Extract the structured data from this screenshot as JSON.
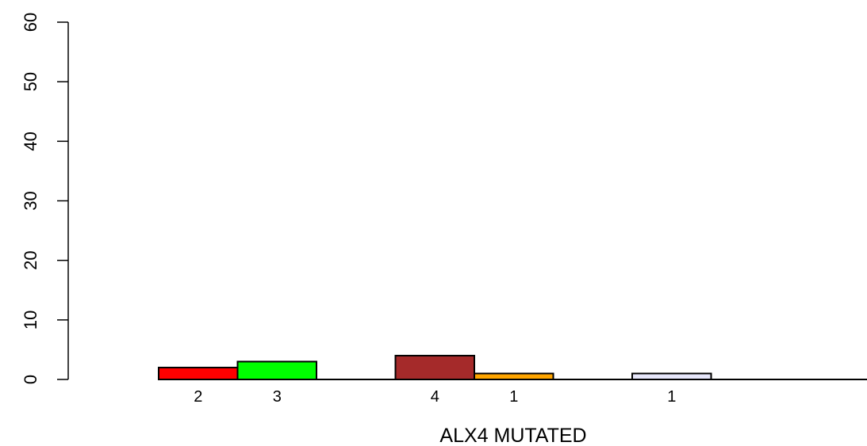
{
  "chart_data": {
    "type": "bar",
    "title": "",
    "xlabel": "ALX4 MUTATED",
    "ylabel": "",
    "ylim": [
      0,
      60
    ],
    "y_ticks": [
      "0",
      "10",
      "20",
      "30",
      "40",
      "50",
      "60"
    ],
    "grid": false,
    "legend": "none",
    "bars": [
      {
        "value": 2,
        "label": "2",
        "color": "#ff0000"
      },
      {
        "value": 3,
        "label": "3",
        "color": "#00ff00"
      },
      {
        "value": 0,
        "label": "",
        "color": "#0000ff"
      },
      {
        "value": 4,
        "label": "4",
        "color": "#a52a2a"
      },
      {
        "value": 1,
        "label": "1",
        "color": "#ffa500"
      },
      {
        "value": 0,
        "label": "",
        "color": "#00ffff"
      },
      {
        "value": 1,
        "label": "1",
        "color": "#e6e6fa"
      },
      {
        "value": 0,
        "label": "",
        "color": "#ff00ff"
      },
      {
        "value": 0,
        "label": "",
        "color": "#ffff00"
      }
    ]
  }
}
